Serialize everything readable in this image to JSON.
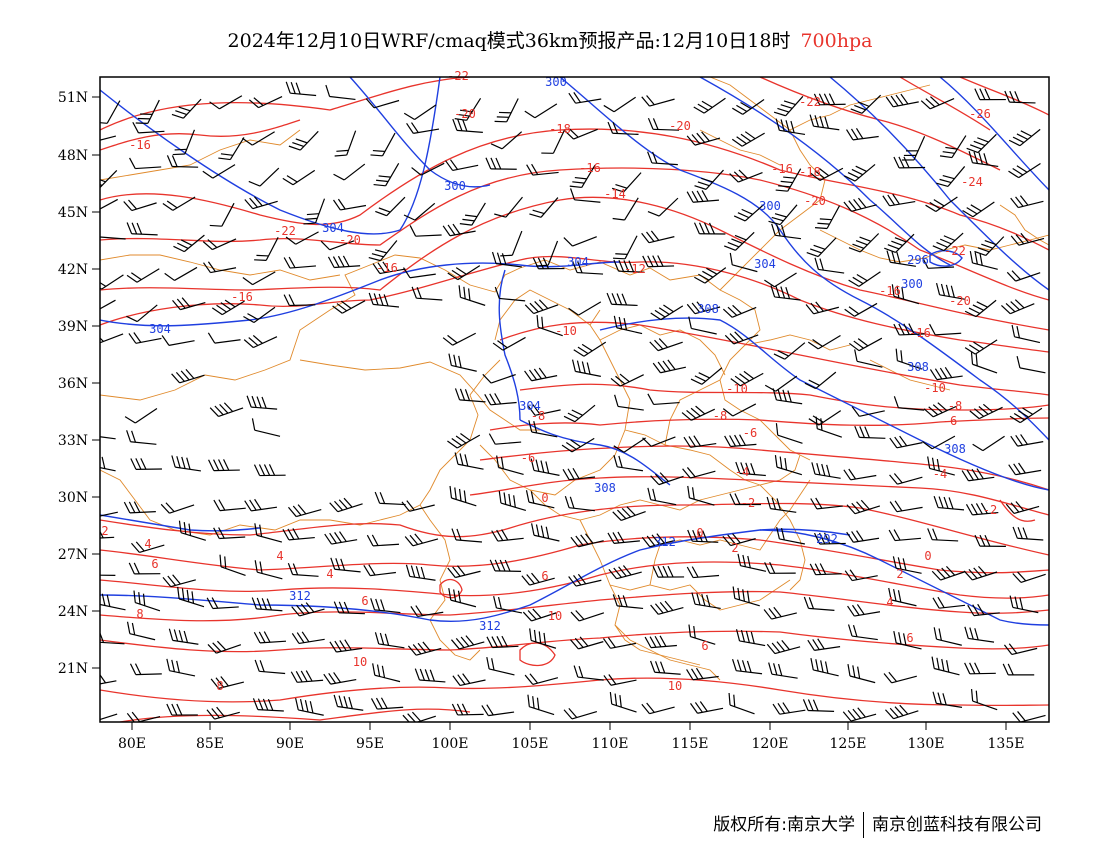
{
  "title": {
    "main": "2024年12月10日WRF/cmaq模式36km预报产品:12月10日18时",
    "level": "700hpa",
    "level_color": "#e8342c"
  },
  "map": {
    "lon_ticks": [
      "80E",
      "85E",
      "90E",
      "95E",
      "100E",
      "105E",
      "110E",
      "115E",
      "120E",
      "125E",
      "130E",
      "135E"
    ],
    "lat_ticks": [
      "51N",
      "48N",
      "45N",
      "42N",
      "39N",
      "36N",
      "33N",
      "30N",
      "27N",
      "24N",
      "21N"
    ],
    "colors": {
      "temperature": "#e8342c",
      "height": "#1f3fe0",
      "boundary": "#e08a2c",
      "barbs": "#000000"
    },
    "temperature_labels": [
      "-22",
      "-20",
      "-18",
      "-16",
      "-14",
      "-12",
      "-10",
      "-8",
      "-6",
      "-4",
      "-2",
      "0",
      "2",
      "4",
      "6",
      "8",
      "10",
      "-26",
      "-24",
      "-22",
      "-20",
      "-18",
      "-16",
      "-22",
      "-20",
      "-16",
      "-10",
      "-8",
      "-6",
      "-4",
      "-2",
      "-20",
      "-18",
      "-16",
      "-10",
      "-8",
      "-6",
      "-4",
      "-2",
      "0",
      "2",
      "4",
      "6",
      "8",
      "10",
      "-2",
      "0",
      "2",
      "4",
      "6",
      "8"
    ],
    "height_labels": [
      "300",
      "300",
      "300",
      "304",
      "304",
      "304",
      "304",
      "308",
      "308",
      "308",
      "304",
      "308",
      "312",
      "312",
      "312",
      "292",
      "296",
      "300"
    ]
  },
  "footer": {
    "left": "版权所有:南京大学",
    "right": "南京创蓝科技有限公司"
  }
}
